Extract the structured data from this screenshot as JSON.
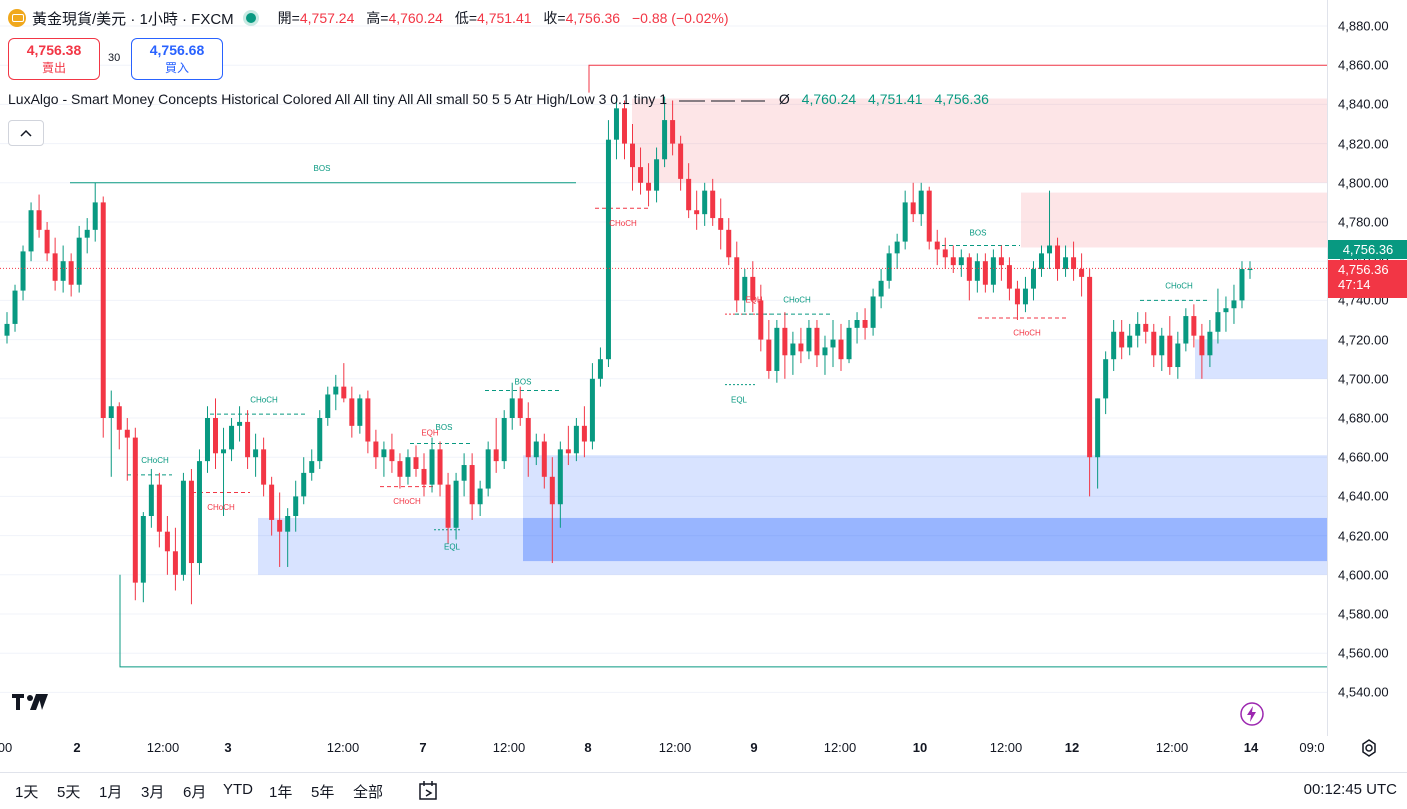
{
  "header": {
    "symbol_title": "黃金現貨/美元 · 1小時 · FXCM",
    "open_label": "開=",
    "open": "4,757.24",
    "high_label": "高=",
    "high": "4,760.24",
    "low_label": "低=",
    "low": "4,751.41",
    "close_label": "收=",
    "close": "4,756.36",
    "change": "−0.88 (−0.02%)"
  },
  "quote": {
    "sell_price": "4,756.38",
    "sell_label": "賣出",
    "spread": "30",
    "buy_price": "4,756.68",
    "buy_label": "買入"
  },
  "indicator": {
    "text": "LuxAlgo - Smart Money Concepts Historical Colored All All tiny All All small 50 5 5 Atr High/Low 3 0.1 tiny 1",
    "empty_symbol": "Ø",
    "v1": "4,760.24",
    "v2": "4,751.41",
    "v3": "4,756.36"
  },
  "price_axis": {
    "ticks": [
      "4,880.00",
      "4,860.00",
      "4,840.00",
      "4,820.00",
      "4,800.00",
      "4,780.00",
      "4,760.00",
      "4,740.00",
      "4,720.00",
      "4,700.00",
      "4,680.00",
      "4,660.00",
      "4,640.00",
      "4,620.00",
      "4,600.00",
      "4,580.00",
      "4,560.00",
      "4,540.00"
    ],
    "ask_label": "4,756.36",
    "last_label": "4,756.36",
    "countdown": "47:14"
  },
  "time_axis": {
    "ticks": [
      {
        "label": "00",
        "bold": false
      },
      {
        "label": "2",
        "bold": true
      },
      {
        "label": "12:00",
        "bold": false
      },
      {
        "label": "3",
        "bold": true
      },
      {
        "label": "12:00",
        "bold": false
      },
      {
        "label": "7",
        "bold": true
      },
      {
        "label": "12:00",
        "bold": false
      },
      {
        "label": "8",
        "bold": true
      },
      {
        "label": "12:00",
        "bold": false
      },
      {
        "label": "9",
        "bold": true
      },
      {
        "label": "12:00",
        "bold": false
      },
      {
        "label": "10",
        "bold": true
      },
      {
        "label": "12:00",
        "bold": false
      },
      {
        "label": "12",
        "bold": true
      },
      {
        "label": "12:00",
        "bold": false
      },
      {
        "label": "14",
        "bold": true
      },
      {
        "label": "09:0",
        "bold": false
      }
    ]
  },
  "ranges": [
    "1天",
    "5天",
    "1月",
    "3月",
    "6月",
    "YTD",
    "1年",
    "5年",
    "全部"
  ],
  "clock": "00:12:45 UTC",
  "chart_data": {
    "type": "candlestick",
    "ylim": [
      4530,
      4890
    ],
    "price_line": 4756.36,
    "structure_labels": [
      "BOS",
      "BOS",
      "CHoCH",
      "CHoCH",
      "EQH",
      "CHoCH",
      "CHoCH",
      "EQL",
      "BOS",
      "CHoCH",
      "EQH",
      "CHoCH",
      "EQL",
      "BOS",
      "CHoCH",
      "CHoCH"
    ],
    "candles": [
      [
        4722,
        4734,
        4718,
        4728
      ],
      [
        4728,
        4748,
        4724,
        4745
      ],
      [
        4745,
        4768,
        4740,
        4765
      ],
      [
        4765,
        4790,
        4760,
        4786
      ],
      [
        4786,
        4794,
        4772,
        4776
      ],
      [
        4776,
        4780,
        4760,
        4764
      ],
      [
        4764,
        4772,
        4745,
        4750
      ],
      [
        4750,
        4768,
        4744,
        4760
      ],
      [
        4760,
        4764,
        4742,
        4748
      ],
      [
        4748,
        4778,
        4744,
        4772
      ],
      [
        4772,
        4782,
        4764,
        4776
      ],
      [
        4776,
        4800,
        4770,
        4790
      ],
      [
        4790,
        4793,
        4670,
        4680
      ],
      [
        4680,
        4694,
        4650,
        4686
      ],
      [
        4686,
        4688,
        4664,
        4674
      ],
      [
        4674,
        4680,
        4648,
        4670
      ],
      [
        4670,
        4675,
        4587,
        4596
      ],
      [
        4596,
        4632,
        4586,
        4630
      ],
      [
        4630,
        4654,
        4624,
        4646
      ],
      [
        4646,
        4652,
        4614,
        4622
      ],
      [
        4622,
        4630,
        4600,
        4612
      ],
      [
        4612,
        4624,
        4592,
        4600
      ],
      [
        4600,
        4652,
        4597,
        4648
      ],
      [
        4648,
        4654,
        4585,
        4606
      ],
      [
        4606,
        4664,
        4600,
        4658
      ],
      [
        4658,
        4686,
        4652,
        4680
      ],
      [
        4680,
        4690,
        4654,
        4662
      ],
      [
        4662,
        4675,
        4630,
        4664
      ],
      [
        4664,
        4680,
        4658,
        4676
      ],
      [
        4676,
        4686,
        4668,
        4678
      ],
      [
        4678,
        4684,
        4654,
        4660
      ],
      [
        4660,
        4672,
        4650,
        4664
      ],
      [
        4664,
        4670,
        4640,
        4646
      ],
      [
        4646,
        4650,
        4620,
        4628
      ],
      [
        4628,
        4642,
        4604,
        4622
      ],
      [
        4622,
        4634,
        4604,
        4630
      ],
      [
        4630,
        4648,
        4622,
        4640
      ],
      [
        4640,
        4660,
        4636,
        4652
      ],
      [
        4652,
        4664,
        4648,
        4658
      ],
      [
        4658,
        4684,
        4654,
        4680
      ],
      [
        4680,
        4696,
        4676,
        4692
      ],
      [
        4692,
        4702,
        4684,
        4696
      ],
      [
        4696,
        4708,
        4688,
        4690
      ],
      [
        4690,
        4696,
        4670,
        4676
      ],
      [
        4676,
        4692,
        4672,
        4690
      ],
      [
        4690,
        4694,
        4662,
        4668
      ],
      [
        4668,
        4674,
        4654,
        4660
      ],
      [
        4660,
        4668,
        4650,
        4664
      ],
      [
        4664,
        4672,
        4652,
        4658
      ],
      [
        4658,
        4662,
        4644,
        4650
      ],
      [
        4650,
        4664,
        4646,
        4660
      ],
      [
        4660,
        4666,
        4650,
        4654
      ],
      [
        4654,
        4662,
        4640,
        4646
      ],
      [
        4646,
        4670,
        4642,
        4664
      ],
      [
        4664,
        4668,
        4640,
        4646
      ],
      [
        4646,
        4652,
        4616,
        4624
      ],
      [
        4624,
        4652,
        4618,
        4648
      ],
      [
        4648,
        4662,
        4640,
        4656
      ],
      [
        4656,
        4662,
        4628,
        4636
      ],
      [
        4636,
        4648,
        4630,
        4644
      ],
      [
        4644,
        4668,
        4640,
        4664
      ],
      [
        4664,
        4680,
        4652,
        4658
      ],
      [
        4658,
        4684,
        4654,
        4680
      ],
      [
        4680,
        4698,
        4674,
        4690
      ],
      [
        4690,
        4696,
        4676,
        4680
      ],
      [
        4680,
        4688,
        4650,
        4660
      ],
      [
        4660,
        4672,
        4656,
        4668
      ],
      [
        4668,
        4672,
        4644,
        4650
      ],
      [
        4650,
        4660,
        4606,
        4636
      ],
      [
        4636,
        4668,
        4624,
        4664
      ],
      [
        4664,
        4676,
        4656,
        4662
      ],
      [
        4662,
        4680,
        4658,
        4676
      ],
      [
        4676,
        4686,
        4660,
        4668
      ],
      [
        4668,
        4708,
        4664,
        4700
      ],
      [
        4700,
        4716,
        4696,
        4710
      ],
      [
        4710,
        4832,
        4706,
        4822
      ],
      [
        4822,
        4844,
        4812,
        4838
      ],
      [
        4838,
        4842,
        4812,
        4820
      ],
      [
        4820,
        4830,
        4796,
        4808
      ],
      [
        4808,
        4818,
        4794,
        4800
      ],
      [
        4800,
        4810,
        4788,
        4796
      ],
      [
        4796,
        4818,
        4790,
        4812
      ],
      [
        4812,
        4844,
        4808,
        4832
      ],
      [
        4832,
        4842,
        4814,
        4820
      ],
      [
        4820,
        4824,
        4796,
        4802
      ],
      [
        4802,
        4810,
        4782,
        4786
      ],
      [
        4786,
        4796,
        4776,
        4784
      ],
      [
        4784,
        4800,
        4778,
        4796
      ],
      [
        4796,
        4802,
        4778,
        4782
      ],
      [
        4782,
        4792,
        4766,
        4776
      ],
      [
        4776,
        4782,
        4758,
        4762
      ],
      [
        4762,
        4770,
        4734,
        4740
      ],
      [
        4740,
        4756,
        4734,
        4752
      ],
      [
        4752,
        4760,
        4734,
        4740
      ],
      [
        4740,
        4748,
        4714,
        4720
      ],
      [
        4720,
        4730,
        4700,
        4704
      ],
      [
        4704,
        4730,
        4698,
        4726
      ],
      [
        4726,
        4734,
        4700,
        4712
      ],
      [
        4712,
        4724,
        4702,
        4718
      ],
      [
        4718,
        4726,
        4708,
        4714
      ],
      [
        4714,
        4730,
        4710,
        4726
      ],
      [
        4726,
        4730,
        4706,
        4712
      ],
      [
        4712,
        4722,
        4702,
        4716
      ],
      [
        4716,
        4730,
        4706,
        4720
      ],
      [
        4720,
        4728,
        4704,
        4710
      ],
      [
        4710,
        4730,
        4708,
        4726
      ],
      [
        4726,
        4734,
        4718,
        4730
      ],
      [
        4730,
        4736,
        4720,
        4726
      ],
      [
        4726,
        4746,
        4722,
        4742
      ],
      [
        4742,
        4756,
        4736,
        4750
      ],
      [
        4750,
        4768,
        4746,
        4764
      ],
      [
        4764,
        4774,
        4756,
        4770
      ],
      [
        4770,
        4796,
        4766,
        4790
      ],
      [
        4790,
        4800,
        4780,
        4784
      ],
      [
        4784,
        4800,
        4778,
        4796
      ],
      [
        4796,
        4798,
        4766,
        4770
      ],
      [
        4770,
        4776,
        4758,
        4766
      ],
      [
        4766,
        4772,
        4756,
        4762
      ],
      [
        4762,
        4768,
        4754,
        4758
      ],
      [
        4758,
        4766,
        4752,
        4762
      ],
      [
        4762,
        4764,
        4740,
        4750
      ],
      [
        4750,
        4764,
        4744,
        4760
      ],
      [
        4760,
        4764,
        4744,
        4748
      ],
      [
        4748,
        4766,
        4744,
        4762
      ],
      [
        4762,
        4768,
        4750,
        4758
      ],
      [
        4758,
        4762,
        4740,
        4746
      ],
      [
        4746,
        4750,
        4730,
        4738
      ],
      [
        4738,
        4752,
        4734,
        4746
      ],
      [
        4746,
        4760,
        4740,
        4756
      ],
      [
        4756,
        4768,
        4752,
        4764
      ],
      [
        4764,
        4796,
        4756,
        4768
      ],
      [
        4768,
        4772,
        4750,
        4756
      ],
      [
        4756,
        4768,
        4752,
        4762
      ],
      [
        4762,
        4770,
        4750,
        4756
      ],
      [
        4756,
        4764,
        4742,
        4752
      ],
      [
        4752,
        4756,
        4640,
        4660
      ],
      [
        4660,
        4690,
        4644,
        4690
      ],
      [
        4690,
        4714,
        4682,
        4710
      ],
      [
        4710,
        4730,
        4704,
        4724
      ],
      [
        4724,
        4730,
        4710,
        4716
      ],
      [
        4716,
        4728,
        4712,
        4722
      ],
      [
        4722,
        4734,
        4716,
        4728
      ],
      [
        4728,
        4734,
        4718,
        4724
      ],
      [
        4724,
        4728,
        4706,
        4712
      ],
      [
        4712,
        4726,
        4704,
        4722
      ],
      [
        4722,
        4732,
        4702,
        4706
      ],
      [
        4706,
        4724,
        4700,
        4718
      ],
      [
        4718,
        4736,
        4714,
        4732
      ],
      [
        4732,
        4738,
        4716,
        4722
      ],
      [
        4722,
        4728,
        4700,
        4712
      ],
      [
        4712,
        4730,
        4706,
        4724
      ],
      [
        4724,
        4746,
        4718,
        4734
      ],
      [
        4734,
        4742,
        4724,
        4736
      ],
      [
        4736,
        4748,
        4728,
        4740
      ],
      [
        4740,
        4760,
        4736,
        4756
      ],
      [
        4756,
        4760,
        4751,
        4756
      ]
    ]
  }
}
